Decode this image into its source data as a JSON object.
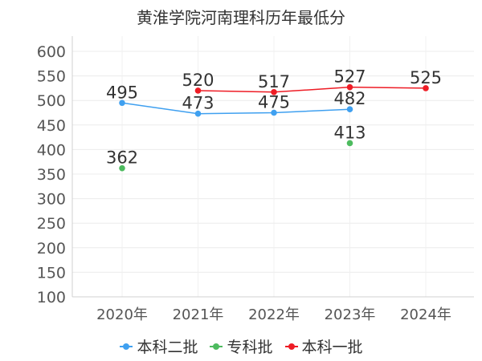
{
  "chart_data": {
    "type": "line",
    "title": "黄淮学院河南理科历年最低分",
    "categories": [
      "2020年",
      "2021年",
      "2022年",
      "2023年",
      "2024年"
    ],
    "ylim": [
      100,
      600
    ],
    "yticks": [
      100,
      150,
      200,
      250,
      300,
      350,
      400,
      450,
      500,
      550,
      600
    ],
    "grid": true,
    "legend_position": "bottom",
    "series": [
      {
        "name": "本科二批",
        "color": "#3fa0f0",
        "values": [
          495,
          473,
          475,
          482,
          null
        ]
      },
      {
        "name": "专科批",
        "color": "#4dbb5f",
        "values": [
          362,
          null,
          null,
          413,
          null
        ]
      },
      {
        "name": "本科一批",
        "color": "#ee1c25",
        "values": [
          null,
          520,
          517,
          527,
          525
        ]
      }
    ]
  }
}
